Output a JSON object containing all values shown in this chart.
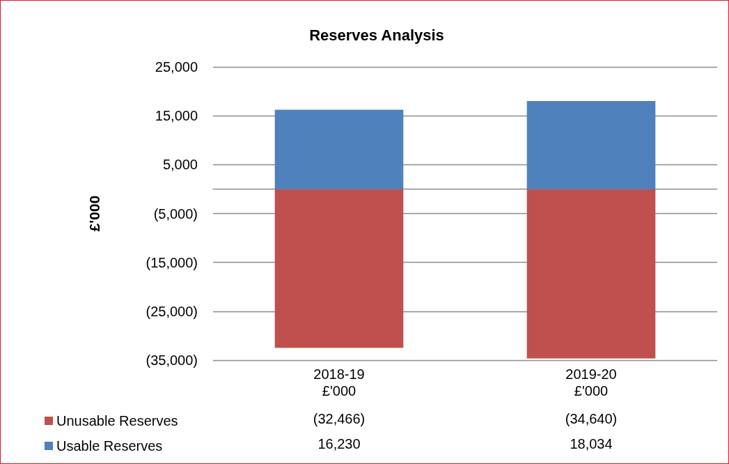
{
  "chart_data": {
    "type": "bar",
    "title": "Reserves Analysis",
    "ylabel": "£'000",
    "categories": [
      "2018-19\n£'000",
      "2019-20\n£'000"
    ],
    "series": [
      {
        "name": "Unusable Reserves",
        "color": "#c0504d",
        "values": [
          -32466,
          -34640
        ],
        "value_labels": [
          "(32,466)",
          "(34,640)"
        ]
      },
      {
        "name": "Usable Reserves",
        "color": "#4f81bd",
        "values": [
          16230,
          18034
        ],
        "value_labels": [
          "16,230",
          "18,034"
        ]
      }
    ],
    "stacked": true,
    "ylim": [
      -35000,
      25000
    ],
    "yticks": [
      {
        "value": -35000,
        "label": "(35,000)"
      },
      {
        "value": -25000,
        "label": "(25,000)"
      },
      {
        "value": -15000,
        "label": "(15,000)"
      },
      {
        "value": -5000,
        "label": "(5,000)"
      },
      {
        "value": 5000,
        "label": "5,000"
      },
      {
        "value": 15000,
        "label": "15,000"
      },
      {
        "value": 25000,
        "label": "25,000"
      }
    ],
    "grid": "y",
    "legend": "bottom left"
  }
}
